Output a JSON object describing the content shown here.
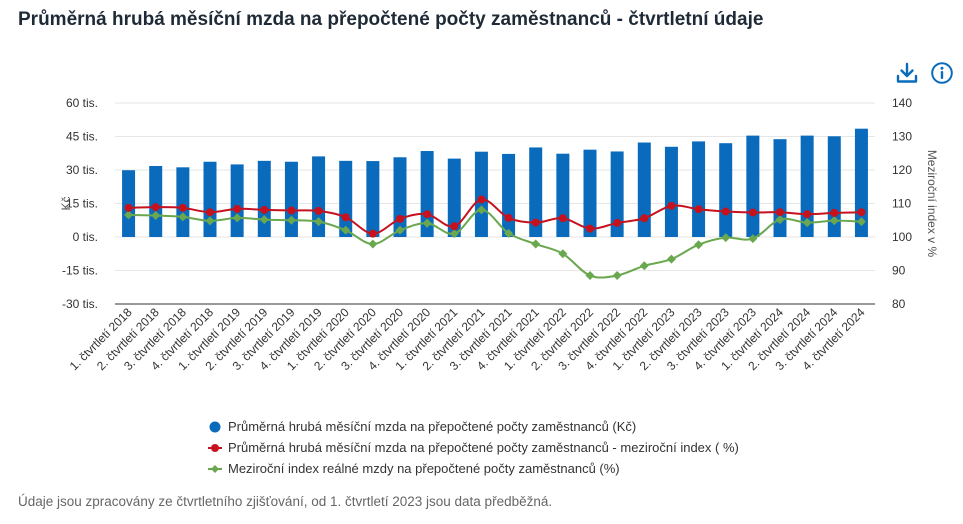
{
  "header": {
    "title": "Průměrná hrubá měsíční mzda na přepočtené počty zaměstnanců - čtvrtletní údaje"
  },
  "toolbar": {
    "download_icon": "download-icon",
    "info_icon": "info-icon"
  },
  "colors": {
    "bar": "#0a6bbd",
    "red": "#c5121e",
    "green": "#6aa84f",
    "grid": "#e6e6e6",
    "axis": "#333333"
  },
  "chart_data": {
    "type": "bar",
    "categories": [
      "1. čtvrtletí 2018",
      "2. čtvrtletí 2018",
      "3. čtvrtletí 2018",
      "4. čtvrtletí 2018",
      "1. čtvrtletí 2019",
      "2. čtvrtletí 2019",
      "3. čtvrtletí 2019",
      "4. čtvrtletí 2019",
      "1. čtvrtletí 2020",
      "2. čtvrtletí 2020",
      "3. čtvrtletí 2020",
      "4. čtvrtletí 2020",
      "1. čtvrtletí 2021",
      "2. čtvrtletí 2021",
      "3. čtvrtletí 2021",
      "4. čtvrtletí 2021",
      "1. čtvrtletí 2022",
      "2. čtvrtletí 2022",
      "3. čtvrtletí 2022",
      "4. čtvrtletí 2022",
      "1. čtvrtletí 2023",
      "2. čtvrtletí 2023",
      "3. čtvrtletí 2023",
      "4. čtvrtletí 2023",
      "1. čtvrtletí 2024",
      "2. čtvrtletí 2024",
      "3. čtvrtletí 2024",
      "4. čtvrtletí 2024"
    ],
    "series": [
      {
        "name": "Průměrná hrubá měsíční mzda na přepočtené počty zaměstnanců (Kč)",
        "type": "bar",
        "axis": "left",
        "values": [
          29900,
          31800,
          31200,
          33700,
          32500,
          34100,
          33700,
          36100,
          34100,
          34000,
          35700,
          38500,
          35100,
          38200,
          37200,
          40100,
          37300,
          39100,
          38300,
          42300,
          40400,
          42800,
          42000,
          45400,
          43800,
          45400,
          45100,
          48500
        ]
      },
      {
        "name": "Průměrná hrubá měsíční mzda na přepočtené počty zaměstnanců - meziroční index ( %)",
        "type": "line",
        "axis": "right",
        "values": [
          108.7,
          108.9,
          108.7,
          107.4,
          108.4,
          108.1,
          107.9,
          107.8,
          105.9,
          101.0,
          105.4,
          106.8,
          103.2,
          111.2,
          105.7,
          104.3,
          105.6,
          102.5,
          104.2,
          105.6,
          109.3,
          108.3,
          107.6,
          107.3,
          107.4,
          106.8,
          107.2,
          107.4
        ]
      },
      {
        "name": "Meziroční index reálné mzdy na přepočtené počty zaměstnanců (%)",
        "type": "line",
        "axis": "right",
        "values": [
          106.6,
          106.4,
          106.0,
          104.8,
          105.7,
          105.2,
          105.0,
          104.6,
          102.0,
          97.9,
          102.0,
          104.1,
          101.0,
          108.1,
          101.1,
          97.9,
          95.0,
          88.5,
          88.5,
          91.4,
          93.4,
          97.7,
          99.8,
          99.5,
          105.2,
          104.3,
          104.9,
          104.6
        ]
      }
    ],
    "y_left": {
      "label": "Kč",
      "ticks": [
        "60 tis.",
        "45 tis.",
        "30 tis.",
        "15 tis.",
        "0 tis.",
        "-15 tis.",
        "-30 tis."
      ],
      "tick_values": [
        60000,
        45000,
        30000,
        15000,
        0,
        -15000,
        -30000
      ],
      "ylim": [
        -30000,
        60000
      ]
    },
    "y_right": {
      "label": "Meziroční index v %",
      "ticks": [
        "140",
        "130",
        "120",
        "110",
        "100",
        "90",
        "80"
      ],
      "tick_values": [
        140,
        130,
        120,
        110,
        100,
        90,
        80
      ],
      "ylim": [
        80,
        140
      ]
    },
    "grid": true,
    "legend_placement": "bottom"
  },
  "footer": {
    "note": "Údaje jsou zpracovány ze čtvrtletního zjišťování, od 1. čtvrtletí 2023 jsou data předběžná."
  }
}
